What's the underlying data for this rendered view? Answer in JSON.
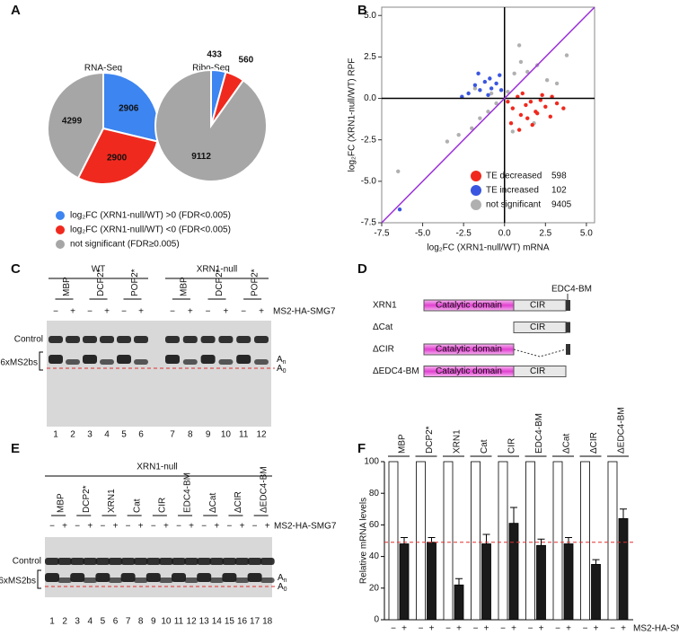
{
  "panel_labels": [
    "A",
    "B",
    "C",
    "D",
    "E",
    "F"
  ],
  "treatment": "MS2-HA-SMG7",
  "chart_data": [
    {
      "type": "pie",
      "title": "RNA-Seq",
      "values": [
        2906,
        2900,
        4299
      ],
      "colors": [
        "#3d85f0",
        "#f0291e",
        "#a6a6a6"
      ],
      "legend": [
        "log₂FC (XRN1-null/WT) >0 (FDR<0.005)",
        "log₂FC (XRN1-null/WT) <0 (FDR<0.005)",
        "not significant (FDR≥0.005)"
      ]
    },
    {
      "type": "pie",
      "title": "Ribo-Seq",
      "values": [
        433,
        560,
        9112
      ],
      "colors": [
        "#3d85f0",
        "#f0291e",
        "#a6a6a6"
      ]
    },
    {
      "type": "scatter",
      "xlabel": "log₂FC (XRN1-null/WT) mRNA",
      "ylabel": "log₂FC (XRN1-null/WT) RPF",
      "xlim": [
        -7.5,
        5.5
      ],
      "ylim": [
        -7.5,
        5.5
      ],
      "xticks": [
        -7.5,
        {
          "value": -5,
          "label": "-5.0"
        },
        -2.5,
        {
          "value": 0,
          "label": "0.0"
        },
        2.5,
        {
          "value": 5,
          "label": "5.0"
        }
      ],
      "yticks": [
        -7.5,
        {
          "value": -5,
          "label": "-5.0"
        },
        -2.5,
        {
          "value": 0,
          "label": "0.0"
        },
        2.5,
        {
          "value": 5,
          "label": "5.0"
        }
      ],
      "diagonal_color": "#9b30d9",
      "series": [
        {
          "name": "not significant",
          "color": "#b0b0b0",
          "count": 9405,
          "x": [
            -6.5,
            -3.5,
            -2.8,
            -2.0,
            -1.5,
            -1.0,
            -0.5,
            0.2,
            0.6,
            1.0,
            1.4,
            2.0,
            2.6,
            3.2,
            -0.8,
            0.5,
            1.8,
            -1.8,
            0.9,
            3.8
          ],
          "values": [
            -4.4,
            -2.6,
            -2.2,
            -1.8,
            -1.2,
            -0.8,
            -0.3,
            0.4,
            1.5,
            2.2,
            1.6,
            2.0,
            1.1,
            0.9,
            0.3,
            -2.0,
            -1.5,
            0.6,
            3.2,
            2.6
          ]
        },
        {
          "name": "TE decreased",
          "color": "#f0291e",
          "count": 598,
          "x": [
            0.2,
            0.5,
            0.8,
            1.0,
            1.3,
            1.6,
            1.9,
            2.2,
            2.5,
            2.8,
            3.2,
            3.6,
            0.4,
            1.1,
            1.7,
            2.3,
            2.9,
            0.9,
            1.4,
            2.0
          ],
          "values": [
            -0.2,
            -0.6,
            0.1,
            -1.0,
            -0.4,
            -0.2,
            -0.8,
            -0.1,
            -0.5,
            -1.1,
            -0.3,
            -0.6,
            -1.5,
            0.3,
            -1.6,
            0.2,
            0.1,
            -1.9,
            -1.2,
            -0.9
          ]
        },
        {
          "name": "TE increased",
          "color": "#3a56e0",
          "count": 102,
          "x": [
            -2.2,
            -1.8,
            -1.5,
            -1.2,
            -1.0,
            -0.8,
            -0.5,
            -0.3,
            -1.6,
            -2.6,
            -0.9,
            -0.2,
            -6.4
          ],
          "values": [
            0.3,
            0.8,
            0.5,
            1.0,
            0.2,
            0.6,
            0.9,
            1.4,
            1.5,
            0.1,
            1.2,
            0.5,
            -6.7
          ]
        }
      ]
    },
    {
      "type": "bar",
      "ylabel": "Relative mRNA levels",
      "categories": [
        "MBP",
        "DCP2*",
        "XRN1",
        "Cat",
        "CIR",
        "EDC4-BM",
        "ΔCat",
        "ΔCIR",
        "ΔEDC4-BM"
      ],
      "ylim": [
        0,
        100
      ],
      "yticks": [
        0,
        20,
        40,
        60,
        80,
        100
      ],
      "reference_line": 49,
      "series": [
        {
          "name": "−",
          "color": "#ffffff",
          "values": [
            100,
            100,
            100,
            100,
            100,
            100,
            100,
            100,
            100
          ]
        },
        {
          "name": "+",
          "color": "#1a1a1a",
          "values": [
            48,
            49,
            22,
            48,
            61,
            47,
            48,
            35,
            64
          ],
          "errors": [
            4,
            3,
            4,
            6,
            10,
            4,
            4,
            3,
            6
          ]
        }
      ]
    }
  ],
  "gel_C": {
    "conditions": [
      "WT",
      "XRN1-null"
    ],
    "groups": [
      "MBP",
      "DCP2*",
      "POP2*"
    ],
    "signs": [
      "−",
      "+"
    ],
    "lanes": [
      1,
      2,
      3,
      4,
      5,
      6,
      7,
      8,
      9,
      10,
      11,
      12
    ],
    "band_labels": [
      "Control",
      "6xMS2bs"
    ],
    "tail_labels": [
      [
        "A",
        "n"
      ],
      [
        "A",
        "0"
      ]
    ]
  },
  "domain_map": {
    "rows": [
      "XRN1",
      "ΔCat",
      "ΔCIR",
      "ΔEDC4-BM"
    ],
    "domains": [
      "Catalytic domain",
      "CIR",
      "EDC4-BM"
    ]
  },
  "gel_E": {
    "condition": "XRN1-null",
    "groups": [
      "MBP",
      "DCP2*",
      "XRN1",
      "Cat",
      "CIR",
      "EDC4-BM",
      "ΔCat",
      "ΔCIR",
      "ΔEDC4-BM"
    ],
    "signs": [
      "−",
      "+"
    ],
    "lanes": [
      1,
      2,
      3,
      4,
      5,
      6,
      7,
      8,
      9,
      10,
      11,
      12,
      13,
      14,
      15,
      16,
      17,
      18
    ],
    "band_labels": [
      "Control",
      "6xMS2bs"
    ],
    "tail_labels": [
      [
        "A",
        "n"
      ],
      [
        "A",
        "0"
      ]
    ]
  }
}
